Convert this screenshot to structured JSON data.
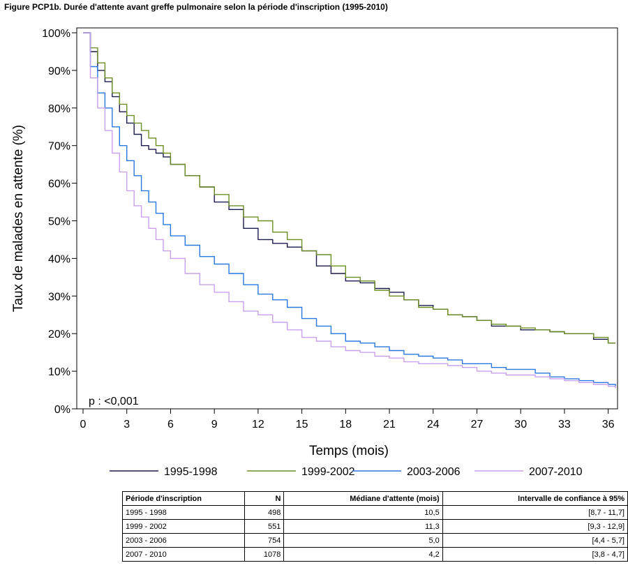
{
  "figure_title": "Figure PCP1b. Durée d'attente avant greffe pulmonaire selon la période d'inscription (1995-2010)",
  "chart_data": {
    "type": "line",
    "xlabel": "Temps (mois)",
    "ylabel": "Taux de malades en attente (%)",
    "xlim": [
      0,
      36.5
    ],
    "ylim": [
      0,
      100
    ],
    "x_ticks": [
      0,
      3,
      6,
      9,
      12,
      15,
      18,
      21,
      24,
      27,
      30,
      33,
      36
    ],
    "y_ticks": [
      0,
      10,
      20,
      30,
      40,
      50,
      60,
      70,
      80,
      90,
      100
    ],
    "y_tick_labels": [
      "0%",
      "10%",
      "20%",
      "30%",
      "40%",
      "50%",
      "60%",
      "70%",
      "80%",
      "90%",
      "100%"
    ],
    "grid": false,
    "legend_position": "bottom",
    "annotation": "p : <0,001",
    "x": [
      0,
      0.5,
      1,
      1.5,
      2,
      2.5,
      3,
      3.5,
      4,
      4.5,
      5,
      5.5,
      6,
      7,
      8,
      9,
      10,
      11,
      12,
      13,
      14,
      15,
      16,
      17,
      18,
      19,
      20,
      21,
      22,
      23,
      24,
      25,
      26,
      27,
      28,
      29,
      30,
      31,
      32,
      33,
      34,
      35,
      36,
      36.5
    ],
    "series": [
      {
        "name": "1995-1998",
        "color": "#1a1a4e",
        "values": [
          100,
          95,
          90,
          87,
          83,
          79,
          76,
          73,
          70,
          69,
          68,
          67,
          65,
          62,
          59,
          55,
          53,
          48,
          45,
          44,
          43,
          42,
          38,
          36,
          34,
          33.5,
          32,
          31,
          29,
          27.5,
          26.5,
          25,
          24.5,
          23.5,
          22,
          22,
          21,
          21,
          20.5,
          20,
          20,
          18.5,
          17.5,
          17.5
        ]
      },
      {
        "name": "1999-2002",
        "color": "#6b8e23",
        "values": [
          100,
          96,
          92,
          88,
          84,
          81,
          78,
          76,
          74,
          72,
          70,
          68,
          65,
          62,
          59,
          57,
          54,
          51,
          50,
          47,
          45,
          42,
          41,
          38,
          35,
          34,
          31.5,
          30,
          29,
          27,
          26.5,
          25,
          24.5,
          23.5,
          22.5,
          22,
          21.5,
          21,
          20.5,
          20,
          20,
          19,
          17.5,
          17.5
        ]
      },
      {
        "name": "2003-2006",
        "color": "#2878e0",
        "values": [
          100,
          91,
          84,
          80,
          75,
          70,
          66,
          62,
          58,
          55,
          52,
          49,
          46,
          43.5,
          40.5,
          38.5,
          36,
          33,
          30.5,
          29,
          27,
          24,
          22,
          20,
          18,
          17.5,
          16.5,
          15.5,
          14.5,
          14,
          13.5,
          13,
          12,
          12,
          11,
          10.5,
          10.5,
          9.5,
          8.5,
          8,
          7.5,
          7,
          6.5,
          6
        ]
      },
      {
        "name": "2007-2010",
        "color": "#c8a0ee",
        "values": [
          100,
          88,
          80,
          74,
          68,
          63,
          58,
          54,
          51,
          48,
          45,
          42,
          40,
          36,
          33,
          31,
          28.5,
          26,
          25,
          23,
          21,
          19,
          18,
          16.5,
          15.5,
          15,
          14,
          13.5,
          12.5,
          12,
          12,
          11.5,
          11,
          10,
          9.5,
          9,
          9,
          8.5,
          8,
          7.5,
          7,
          6.5,
          6,
          5.5
        ]
      }
    ],
    "table": {
      "headers": [
        "Période d'inscription",
        "N",
        "Médiane d'attente (mois)",
        "Intervalle de confiance à 95%"
      ],
      "rows": [
        [
          "1995 - 1998",
          "498",
          "10,5",
          "[8,7 - 11,7]"
        ],
        [
          "1999 - 2002",
          "551",
          "11,3",
          "[9,3 - 12,9]"
        ],
        [
          "2003 - 2006",
          "754",
          "5,0",
          "[4,4 - 5,7]"
        ],
        [
          "2007 - 2010",
          "1078",
          "4,2",
          "[3,8 - 4,7]"
        ]
      ]
    }
  }
}
